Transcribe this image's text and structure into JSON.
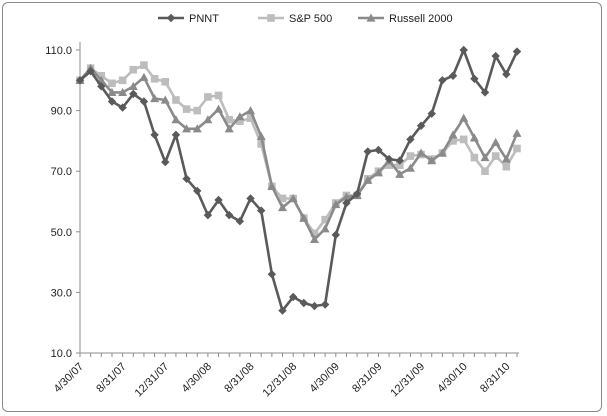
{
  "chart_data": {
    "type": "line",
    "title": "",
    "xlabel": "",
    "ylabel": "",
    "ylim": [
      10,
      110
    ],
    "yticks": [
      "10.0",
      "30.0",
      "50.0",
      "70.0",
      "90.0",
      "110.0"
    ],
    "x_tick_labels": [
      "4/30/07",
      "8/31/07",
      "12/31/07",
      "4/30/08",
      "8/31/08",
      "12/31/08",
      "4/30/09",
      "8/31/09",
      "12/31/09",
      "4/30/10",
      "8/31/10"
    ],
    "x": [
      "4/30/07",
      "5/31/07",
      "6/30/07",
      "7/31/07",
      "8/31/07",
      "9/30/07",
      "10/31/07",
      "11/30/07",
      "12/31/07",
      "1/31/08",
      "2/29/08",
      "3/31/08",
      "4/30/08",
      "5/31/08",
      "6/30/08",
      "7/31/08",
      "8/31/08",
      "9/30/08",
      "10/31/08",
      "11/30/08",
      "12/31/08",
      "1/31/09",
      "2/28/09",
      "3/31/09",
      "4/30/09",
      "5/31/09",
      "6/30/09",
      "7/31/09",
      "8/31/09",
      "9/30/09",
      "10/31/09",
      "11/30/09",
      "12/31/09",
      "1/31/10",
      "2/28/10",
      "3/31/10",
      "4/30/10",
      "5/31/10",
      "6/30/10",
      "7/31/10",
      "8/31/10",
      "9/30/10"
    ],
    "legend_position": "top",
    "grid": false,
    "series": [
      {
        "name": "PNNT",
        "color": "#5a5a5a",
        "marker": "diamond",
        "values": [
          100,
          103,
          98,
          93,
          91,
          95.5,
          93,
          82,
          73,
          82,
          67.5,
          63.5,
          55.5,
          60.5,
          55.5,
          53.5,
          61,
          57,
          36,
          24,
          28.5,
          26.5,
          25.5,
          26,
          49,
          59.5,
          62.5,
          76.5,
          77,
          74,
          73.5,
          80.5,
          85,
          89,
          100,
          101.5,
          110,
          100.5,
          96,
          108,
          102,
          109.5
        ]
      },
      {
        "name": "S&P 500",
        "color": "#bdbdbd",
        "marker": "square",
        "values": [
          100,
          104,
          101.5,
          99,
          100,
          103.5,
          105,
          100.5,
          99.5,
          93.5,
          90.5,
          90,
          94.5,
          95,
          87,
          86.5,
          87.5,
          79,
          65,
          61,
          61,
          54.5,
          49.5,
          54,
          59.5,
          62,
          62,
          67.5,
          70,
          72,
          72,
          75,
          75.5,
          74,
          76,
          80,
          80.5,
          74.5,
          70,
          75,
          71.5,
          77.5
        ]
      },
      {
        "name": "Russell 2000",
        "color": "#8a8a8a",
        "marker": "triangle",
        "values": [
          100,
          104,
          100,
          96,
          96,
          98,
          101,
          94,
          93.5,
          87,
          84,
          84,
          87,
          90.5,
          84,
          88,
          90,
          81.5,
          65,
          58,
          61,
          54.5,
          47.5,
          51,
          59,
          61.5,
          62,
          67,
          69.5,
          73.5,
          69,
          71,
          76,
          73.5,
          76,
          82,
          87.5,
          81,
          74.5,
          79.5,
          74,
          82.5
        ]
      }
    ]
  }
}
